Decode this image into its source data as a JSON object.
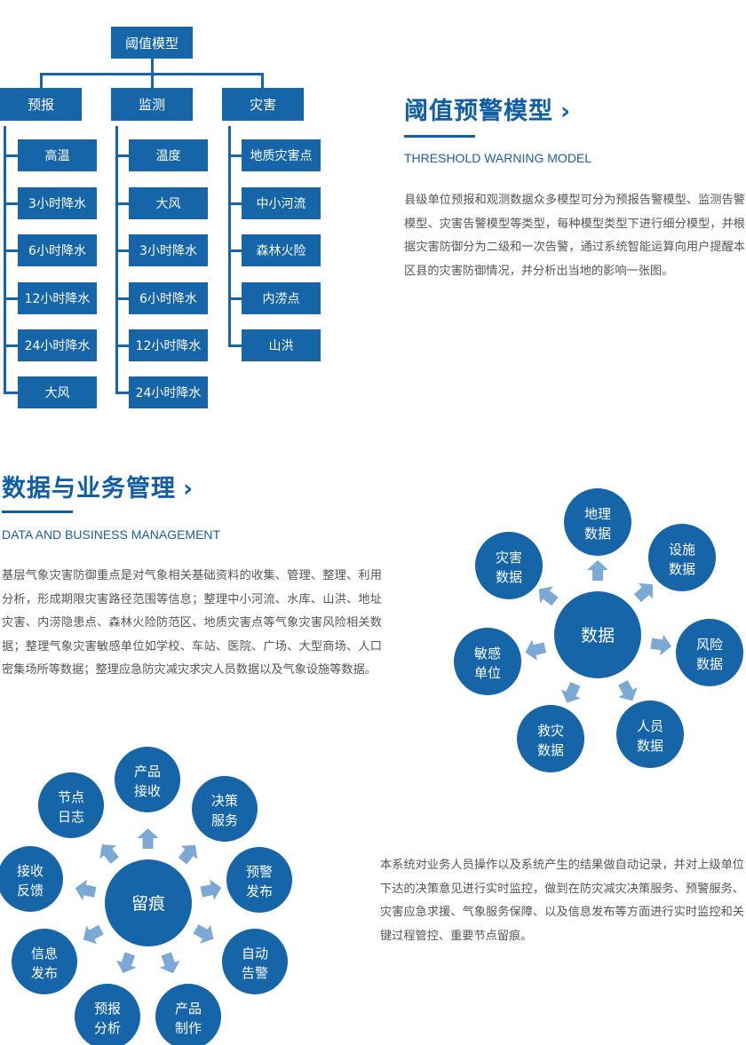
{
  "tree": {
    "root": "阈值模型",
    "branches": [
      {
        "label": "预报",
        "items": [
          "高温",
          "3小时降水",
          "6小时降水",
          "12小时降水",
          "24小时降水",
          "大风"
        ]
      },
      {
        "label": "监测",
        "items": [
          "温度",
          "大风",
          "3小时降水",
          "6小时降水",
          "12小时降水",
          "24小时降水"
        ]
      },
      {
        "label": "灾害",
        "items": [
          "地质灾害点",
          "中小河流",
          "森林火险",
          "内涝点",
          "山洪"
        ]
      }
    ]
  },
  "section1": {
    "title": "阈值预警模型",
    "chevron": "›",
    "subtitle": "THRESHOLD WARNING MODEL",
    "body": "县级单位预报和观测数据众多模型可分为预报告警模型、监测告警模型、灾害告警模型等类型，每种模型类型下进行细分模型，并根据灾害防御分为二级和一次告警，通过系统智能运算向用户提醒本区县的灾害防御情况，并分析出当地的影响一张图。"
  },
  "section2": {
    "title": "数据与业务管理",
    "chevron": "›",
    "subtitle": "DATA AND BUSINESS MANAGEMENT",
    "body": "基层气象灾害防御重点是对气象相关基础资料的收集、管理、整理、利用分析，形成期限灾害路径范围等信息；整理中小河流、水库、山洪、地址灾害、内涝隐患点、森林火险防范区、地质灾害点等气象灾害风险相关数据；整理气象灾害敏感单位如学校、车站、医院、广场、大型商场、人口密集场所等数据；整理应急防灾减灾求灾人员数据以及气象设施等数据。"
  },
  "section3": {
    "body": "本系统对业务人员操作以及系统产生的结果做自动记录，并对上级单位下达的决策意见进行实时监控，做到在防灾减灾决策服务、预警服务、灾害应急求援、气象服务保障、以及信息发布等方面进行实时监控和关键过程管控、重要节点留痕。"
  },
  "data_diagram": {
    "center": "数据",
    "nodes": [
      [
        "地理",
        "数据"
      ],
      [
        "设施",
        "数据"
      ],
      [
        "风险",
        "数据"
      ],
      [
        "人员",
        "数据"
      ],
      [
        "救灾",
        "数据"
      ],
      [
        "敏感",
        "单位"
      ],
      [
        "灾害",
        "数据"
      ]
    ]
  },
  "trace_diagram": {
    "center": "留痕",
    "nodes": [
      [
        "产品",
        "接收"
      ],
      [
        "决策",
        "服务"
      ],
      [
        "预警",
        "发布"
      ],
      [
        "自动",
        "告警"
      ],
      [
        "产品",
        "制作"
      ],
      [
        "预报",
        "分析"
      ],
      [
        "信息",
        "发布"
      ],
      [
        "接收",
        "反馈"
      ],
      [
        "节点",
        "日志"
      ]
    ]
  },
  "colors": {
    "primary": "#1565a8",
    "arrow": "#7ba8d4",
    "title": "#0f5ea6",
    "text": "#555555"
  }
}
